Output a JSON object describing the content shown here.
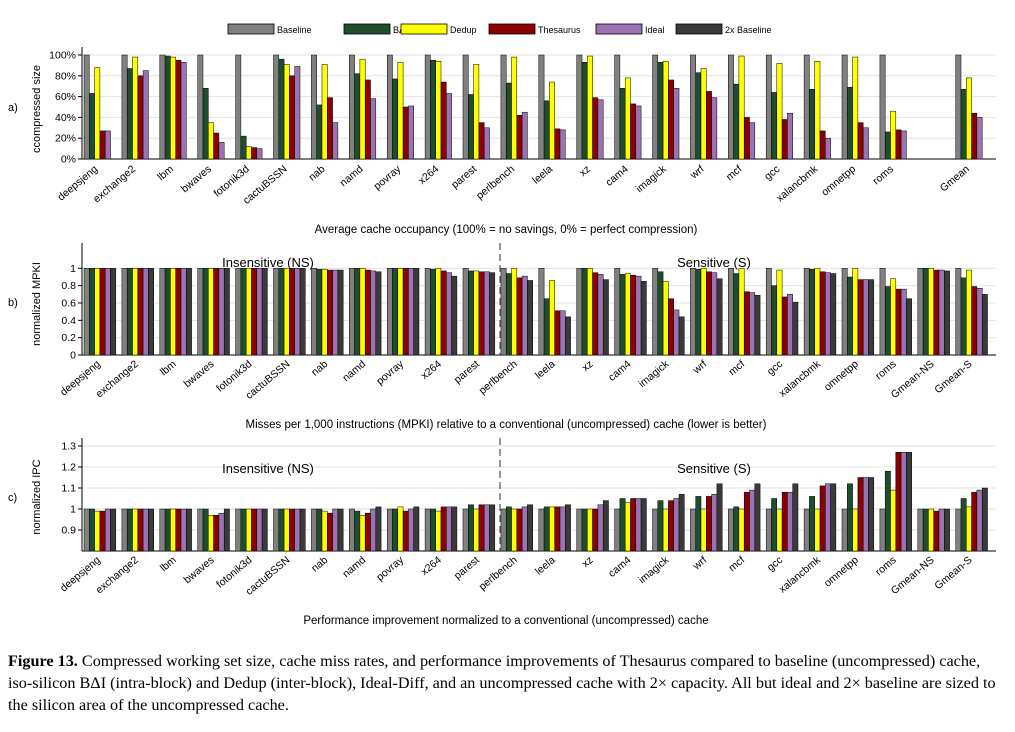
{
  "legend": [
    {
      "name": "Baseline",
      "color": "#808080"
    },
    {
      "name": "BΔI",
      "color": "#1f4e2e"
    },
    {
      "name": "Dedup",
      "color": "#ffff00"
    },
    {
      "name": "Thesaurus",
      "color": "#8b0000"
    },
    {
      "name": "Ideal",
      "color": "#9b72b4"
    },
    {
      "name": "2x Baseline",
      "color": "#3a3a3a"
    }
  ],
  "caption": {
    "label": "Figure 13.",
    "text": "Compressed working set size, cache miss rates, and performance improvements of Thesaurus compared to baseline (uncompressed) cache, iso-silicon BΔI (intra-block) and Dedup (inter-block), Ideal-Diff, and an uncompressed cache with 2× capacity. All but ideal and 2× baseline are sized to the silicon area of the uncompressed cache."
  },
  "chart_data": [
    {
      "panel": "a)",
      "type": "bar",
      "ylabel": "ccompressed size",
      "xlabel": "Average cache occupancy (100% = no savings, 0% = perfect compression)",
      "yticks": [
        "0%",
        "20%",
        "40%",
        "60%",
        "80%",
        "100%"
      ],
      "ylim": [
        0,
        100
      ],
      "categories": [
        "deepsjeng",
        "exchange2",
        "lbm",
        "bwaves",
        "fotonik3d",
        "cactuBSSN",
        "nab",
        "namd",
        "povray",
        "x264",
        "parest",
        "perlbench",
        "leela",
        "xz",
        "cam4",
        "imagick",
        "wrf",
        "mcf",
        "gcc",
        "xalancbmk",
        "omnetpp",
        "roms",
        "",
        "Gmean"
      ],
      "series": [
        {
          "name": "Baseline",
          "values": [
            100,
            100,
            100,
            100,
            100,
            100,
            100,
            100,
            100,
            100,
            100,
            100,
            100,
            100,
            100,
            100,
            100,
            100,
            100,
            100,
            100,
            100,
            0,
            100
          ]
        },
        {
          "name": "BΔI",
          "values": [
            63,
            87,
            99,
            68,
            22,
            96,
            52,
            82,
            77,
            95,
            62,
            73,
            56,
            93,
            68,
            93,
            83,
            72,
            64,
            67,
            69,
            26,
            0,
            67
          ]
        },
        {
          "name": "Dedup",
          "values": [
            88,
            98,
            98,
            35,
            12,
            91,
            91,
            96,
            93,
            94,
            91,
            98,
            74,
            99,
            78,
            94,
            87,
            99,
            92,
            94,
            98,
            46,
            0,
            78
          ]
        },
        {
          "name": "Thesaurus",
          "values": [
            27,
            80,
            95,
            25,
            11,
            80,
            59,
            76,
            50,
            74,
            35,
            42,
            29,
            59,
            53,
            76,
            65,
            40,
            38,
            27,
            35,
            28,
            0,
            44
          ]
        },
        {
          "name": "Ideal",
          "values": [
            27,
            85,
            93,
            16,
            10,
            89,
            35,
            58,
            51,
            63,
            30,
            45,
            28,
            57,
            51,
            68,
            59,
            35,
            44,
            20,
            30,
            27,
            0,
            40
          ]
        }
      ]
    },
    {
      "panel": "b)",
      "type": "bar",
      "ylabel": "normalized MPKI",
      "xlabel": "Misses per 1,000 instructions (MPKI) relative to a conventional (uncompressed) cache (lower is better)",
      "yticks": [
        "0",
        "0.2",
        "0.4",
        "0.6",
        "0.8",
        "1"
      ],
      "ylim": [
        0,
        1.2
      ],
      "region_labels": [
        "Insensitive (NS)",
        "Sensitive (S)"
      ],
      "categories": [
        "deepsjeng",
        "exchange2",
        "lbm",
        "bwaves",
        "fotonik3d",
        "cactuBSSN",
        "nab",
        "namd",
        "povray",
        "x264",
        "parest",
        "perlbench",
        "leela",
        "xz",
        "cam4",
        "imagick",
        "wrf",
        "mcf",
        "gcc",
        "xalancbmk",
        "omnetpp",
        "roms",
        "Gmean-NS",
        "Gmean-S"
      ],
      "series": [
        {
          "name": "Baseline",
          "values": [
            1,
            1,
            1,
            1,
            1,
            1,
            1,
            1,
            1,
            1,
            1,
            1,
            1,
            1,
            1,
            1,
            1,
            1,
            1,
            1,
            1,
            1,
            1,
            1
          ]
        },
        {
          "name": "BΔI",
          "values": [
            1,
            1,
            1,
            1,
            1,
            1,
            0.99,
            1,
            1,
            0.99,
            0.97,
            0.94,
            0.65,
            1,
            0.93,
            0.96,
            0.99,
            0.94,
            0.8,
            0.99,
            0.9,
            0.79,
            1,
            0.89
          ]
        },
        {
          "name": "Dedup",
          "values": [
            1,
            1,
            1,
            1,
            1,
            1,
            0.99,
            1,
            1,
            1,
            0.97,
            1,
            0.86,
            1,
            0.94,
            0.85,
            1,
            1,
            0.98,
            1,
            1,
            0.88,
            1,
            0.98
          ]
        },
        {
          "name": "Thesaurus",
          "values": [
            1,
            1,
            1,
            1,
            1,
            1,
            0.98,
            0.98,
            1,
            0.97,
            0.96,
            0.89,
            0.51,
            0.95,
            0.92,
            0.65,
            0.96,
            0.73,
            0.67,
            0.96,
            0.87,
            0.76,
            0.98,
            0.79
          ]
        },
        {
          "name": "Ideal",
          "values": [
            1,
            1,
            1,
            1,
            1,
            1,
            0.98,
            0.97,
            1,
            0.95,
            0.96,
            0.91,
            0.51,
            0.93,
            0.91,
            0.52,
            0.95,
            0.72,
            0.7,
            0.95,
            0.87,
            0.76,
            0.98,
            0.77
          ]
        },
        {
          "name": "2x Baseline",
          "values": [
            1,
            1,
            1,
            1,
            1,
            1,
            0.98,
            0.96,
            1,
            0.91,
            0.95,
            0.86,
            0.44,
            0.87,
            0.85,
            0.44,
            0.88,
            0.69,
            0.61,
            0.94,
            0.87,
            0.65,
            0.97,
            0.7
          ]
        }
      ]
    },
    {
      "panel": "c)",
      "type": "bar",
      "ylabel": "normalized IPC",
      "xlabel": "Performance improvement normalized to a conventional (uncompressed) cache",
      "yticks": [
        "0.9",
        "1",
        "1.1",
        "1.2",
        "1.3"
      ],
      "ylim": [
        0.8,
        1.3
      ],
      "region_labels": [
        "Insensitive (NS)",
        "Sensitive (S)"
      ],
      "categories": [
        "deepsjeng",
        "exchange2",
        "lbm",
        "bwaves",
        "fotonik3d",
        "cactuBSSN",
        "nab",
        "namd",
        "povray",
        "x264",
        "parest",
        "perlbench",
        "leela",
        "xz",
        "cam4",
        "imagick",
        "wrf",
        "mcf",
        "gcc",
        "xalancbmk",
        "omnetpp",
        "roms",
        "Gmean-NS",
        "Gmean-S"
      ],
      "series": [
        {
          "name": "Baseline",
          "values": [
            1,
            1,
            1,
            1,
            1,
            1,
            1,
            1,
            1,
            1,
            1,
            1,
            1,
            1,
            1,
            1,
            1,
            1,
            1,
            1,
            1,
            1,
            1,
            1
          ]
        },
        {
          "name": "BΔI",
          "values": [
            1,
            1,
            1,
            1,
            1,
            1,
            1,
            0.99,
            1,
            1,
            1.02,
            1.01,
            1.01,
            1,
            1.05,
            1.04,
            1.06,
            1.01,
            1.05,
            1.06,
            1.12,
            1.18,
            1,
            1.05
          ]
        },
        {
          "name": "Dedup",
          "values": [
            0.99,
            1,
            1,
            0.97,
            1,
            1,
            0.99,
            0.97,
            1.01,
            0.99,
            1,
            1,
            1.01,
            1,
            1.03,
            1,
            1,
            1,
            1,
            1,
            1,
            1.09,
            1,
            1.01
          ]
        },
        {
          "name": "Thesaurus",
          "values": [
            0.99,
            1,
            1,
            0.97,
            1,
            1,
            0.98,
            0.98,
            0.99,
            1.01,
            1.02,
            1,
            1.01,
            1,
            1.05,
            1.04,
            1.06,
            1.08,
            1.08,
            1.11,
            1.15,
            1.27,
            0.99,
            1.08
          ]
        },
        {
          "name": "Ideal",
          "values": [
            1,
            1,
            1,
            0.98,
            1,
            1,
            1,
            1,
            1,
            1.01,
            1.02,
            1.01,
            1.01,
            1.02,
            1.05,
            1.05,
            1.07,
            1.09,
            1.08,
            1.12,
            1.15,
            1.27,
            1,
            1.09
          ]
        },
        {
          "name": "2x Baseline",
          "values": [
            1,
            1,
            1,
            1,
            1,
            1,
            1,
            1.01,
            1.01,
            1.01,
            1.02,
            1.02,
            1.02,
            1.04,
            1.05,
            1.07,
            1.12,
            1.12,
            1.12,
            1.12,
            1.15,
            1.27,
            1,
            1.1
          ]
        }
      ]
    }
  ]
}
